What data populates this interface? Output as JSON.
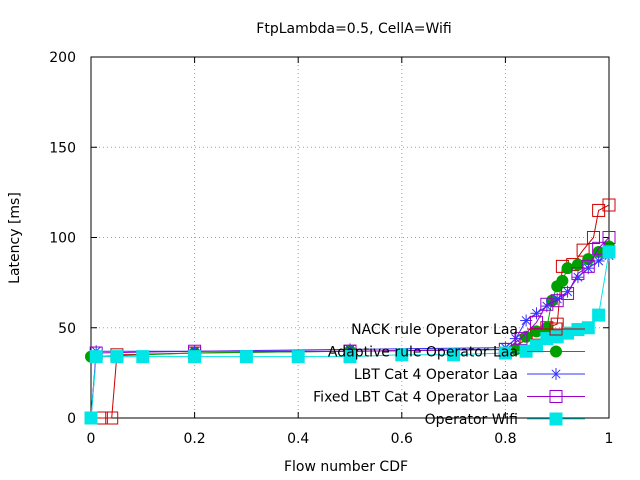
{
  "chart_data": {
    "type": "line",
    "title": "FtpLambda=0.5, CellA=Wifi",
    "xlabel": "Flow number CDF",
    "ylabel": "Latency [ms]",
    "xlim": [
      0,
      1
    ],
    "ylim": [
      0,
      200
    ],
    "xticks": [
      0,
      0.2,
      0.4,
      0.6,
      0.8,
      1
    ],
    "xtick_labels": [
      "0",
      "0.2",
      "0.4",
      "0.6",
      "0.8",
      "1"
    ],
    "yticks": [
      0,
      50,
      100,
      150,
      200
    ],
    "ytick_labels": [
      "0",
      "50",
      "100",
      "150",
      "200"
    ],
    "grid": true,
    "legend_position": "bottom-right",
    "series": [
      {
        "name": "NACK rule Operator Laa",
        "color": "#cc0000",
        "marker": "open-square",
        "x": [
          0.0,
          0.02,
          0.04,
          0.05,
          0.2,
          0.5,
          0.8,
          0.84,
          0.86,
          0.88,
          0.9,
          0.91,
          0.93,
          0.95,
          0.97,
          0.98,
          1.0
        ],
        "y": [
          0,
          0,
          0,
          35,
          36,
          37,
          38,
          43,
          47,
          50,
          52,
          84,
          85,
          93,
          100,
          115,
          118
        ]
      },
      {
        "name": "Adaptive rule Operator Laa",
        "color": "#00a000",
        "marker": "filled-circle",
        "x": [
          0.0,
          0.2,
          0.5,
          0.82,
          0.84,
          0.86,
          0.88,
          0.89,
          0.9,
          0.91,
          0.92,
          0.94,
          0.96,
          0.98,
          1.0
        ],
        "y": [
          34,
          36,
          37,
          38,
          45,
          48,
          50,
          65,
          73,
          76,
          83,
          85,
          88,
          92,
          95
        ]
      },
      {
        "name": "LBT Cat 4 Operator Laa",
        "color": "#3333ff",
        "marker": "star",
        "x": [
          0.0,
          0.01,
          0.2,
          0.5,
          0.8,
          0.82,
          0.84,
          0.86,
          0.88,
          0.9,
          0.92,
          0.94,
          0.96,
          0.98,
          1.0
        ],
        "y": [
          0,
          37,
          37,
          38,
          39,
          44,
          54,
          58,
          62,
          66,
          70,
          78,
          83,
          87,
          90
        ]
      },
      {
        "name": "Fixed LBT Cat 4  Operator Laa",
        "color": "#9900cc",
        "marker": "open-square",
        "x": [
          0.0,
          0.01,
          0.2,
          0.5,
          0.8,
          0.83,
          0.86,
          0.88,
          0.9,
          0.92,
          0.94,
          0.96,
          0.98,
          1.0
        ],
        "y": [
          0,
          36,
          37,
          37,
          38,
          44,
          53,
          63,
          65,
          69,
          80,
          84,
          94,
          100
        ]
      },
      {
        "name": "Operator Wifi",
        "color": "#00e5e5",
        "marker": "filled-square",
        "x": [
          0.0,
          0.01,
          0.05,
          0.1,
          0.2,
          0.3,
          0.4,
          0.5,
          0.6,
          0.7,
          0.8,
          0.84,
          0.86,
          0.88,
          0.9,
          0.92,
          0.94,
          0.96,
          0.98,
          1.0
        ],
        "y": [
          0,
          34,
          34,
          34,
          34,
          34,
          34,
          34,
          35,
          35,
          36,
          37,
          40,
          44,
          45,
          47,
          49,
          50,
          57,
          92
        ]
      }
    ]
  }
}
